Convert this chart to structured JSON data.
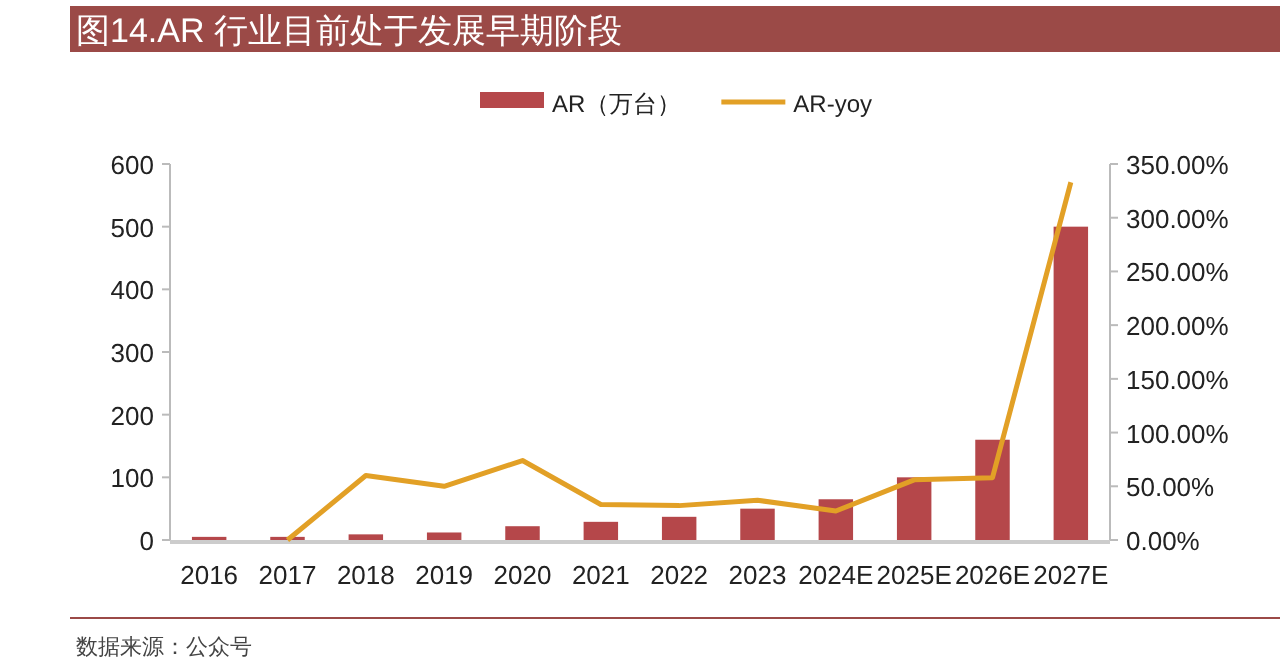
{
  "chart_data": {
    "type": "bar",
    "title": "图14.AR 行业目前处于发展早期阶段",
    "categories": [
      "2016",
      "2017",
      "2018",
      "2019",
      "2020",
      "2021",
      "2022",
      "2023",
      "2024E",
      "2025E",
      "2026E",
      "2027E"
    ],
    "series": [
      {
        "name": "AR（万台）",
        "color": "#b5474a",
        "values": [
          5,
          5,
          9,
          12,
          22,
          29,
          37,
          50,
          65,
          100,
          160,
          500
        ]
      },
      {
        "name": "AR-yoy",
        "type": "line",
        "axis": "y2",
        "color": "#e2a026",
        "values": [
          null,
          0,
          60,
          50,
          74,
          33,
          32,
          37,
          27,
          56,
          58,
          333
        ]
      }
    ],
    "ylim": [
      0,
      600
    ],
    "yticks": [
      0,
      100,
      200,
      300,
      400,
      500,
      600
    ],
    "y2lim": [
      0,
      350
    ],
    "y2ticks": [
      {
        "value": 0,
        "label": "0.00%"
      },
      {
        "value": 50,
        "label": "50.00%"
      },
      {
        "value": 100,
        "label": "100.00%"
      },
      {
        "value": 150,
        "label": "150.00%"
      },
      {
        "value": 200,
        "label": "200.00%"
      },
      {
        "value": 250,
        "label": "250.00%"
      },
      {
        "value": 300,
        "label": "300.00%"
      },
      {
        "value": 350,
        "label": "350.00%"
      }
    ],
    "legend": "top",
    "grid": false,
    "annotations": [
      "数据来源：公众号"
    ]
  }
}
